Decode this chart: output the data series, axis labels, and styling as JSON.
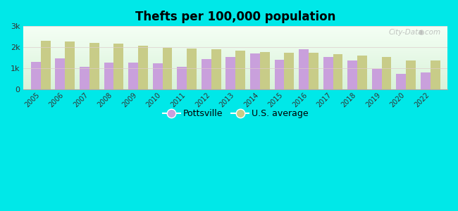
{
  "title": "Thefts per 100,000 population",
  "years": [
    2005,
    2006,
    2007,
    2008,
    2009,
    2010,
    2011,
    2012,
    2013,
    2014,
    2015,
    2016,
    2017,
    2018,
    2019,
    2020,
    2022
  ],
  "pottsville": [
    1300,
    1490,
    1060,
    1270,
    1270,
    1240,
    1090,
    1450,
    1560,
    1720,
    1420,
    1900,
    1540,
    1380,
    990,
    750,
    820
  ],
  "us_average": [
    2320,
    2270,
    2210,
    2190,
    2070,
    1990,
    1950,
    1910,
    1850,
    1790,
    1760,
    1730,
    1680,
    1600,
    1540,
    1370,
    1370
  ],
  "pottsville_color": "#c9a0dc",
  "us_avg_color": "#c8cc88",
  "background_color": "#00e8e8",
  "plot_bg_top": "#f5fff5",
  "plot_bg_bottom": "#e8f5e8",
  "ylim": [
    0,
    3000
  ],
  "yticks": [
    0,
    1000,
    2000,
    3000
  ],
  "ytick_labels": [
    "0",
    "1k",
    "2k",
    "3k"
  ],
  "bar_width": 0.4,
  "legend_labels": [
    "Pottsville",
    "U.S. average"
  ],
  "watermark": "City-Data.com"
}
